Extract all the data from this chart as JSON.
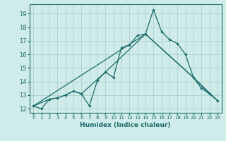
{
  "xlabel": "Humidex (Indice chaleur)",
  "xlim": [
    -0.5,
    23.5
  ],
  "ylim": [
    11.7,
    19.7
  ],
  "yticks": [
    12,
    13,
    14,
    15,
    16,
    17,
    18,
    19
  ],
  "xticks": [
    0,
    1,
    2,
    3,
    4,
    5,
    6,
    7,
    8,
    9,
    10,
    11,
    12,
    13,
    14,
    15,
    16,
    17,
    18,
    19,
    20,
    21,
    22,
    23
  ],
  "background_color": "#d0ecea",
  "grid_color": "#b0d4d0",
  "line_color": "#1a6b6b",
  "line1_x": [
    0,
    1,
    2,
    3,
    4,
    5,
    6,
    7,
    8,
    9,
    10,
    11,
    12,
    13,
    14,
    15,
    16,
    17,
    18,
    19,
    20,
    21,
    22,
    23
  ],
  "line1_y": [
    12.2,
    12.0,
    12.7,
    12.8,
    13.0,
    13.3,
    13.1,
    12.2,
    14.1,
    14.7,
    14.3,
    16.5,
    16.7,
    17.4,
    17.5,
    19.3,
    17.7,
    17.1,
    16.8,
    16.0,
    14.3,
    13.5,
    13.1,
    12.6
  ],
  "line2_x": [
    0,
    2,
    3,
    4,
    5,
    6,
    9,
    14,
    20,
    22,
    23
  ],
  "line2_y": [
    12.2,
    12.7,
    12.8,
    13.0,
    13.3,
    13.1,
    14.7,
    17.5,
    14.3,
    13.1,
    12.6
  ],
  "line3_x": [
    0,
    14,
    20,
    23
  ],
  "line3_y": [
    12.2,
    17.5,
    14.3,
    12.6
  ]
}
